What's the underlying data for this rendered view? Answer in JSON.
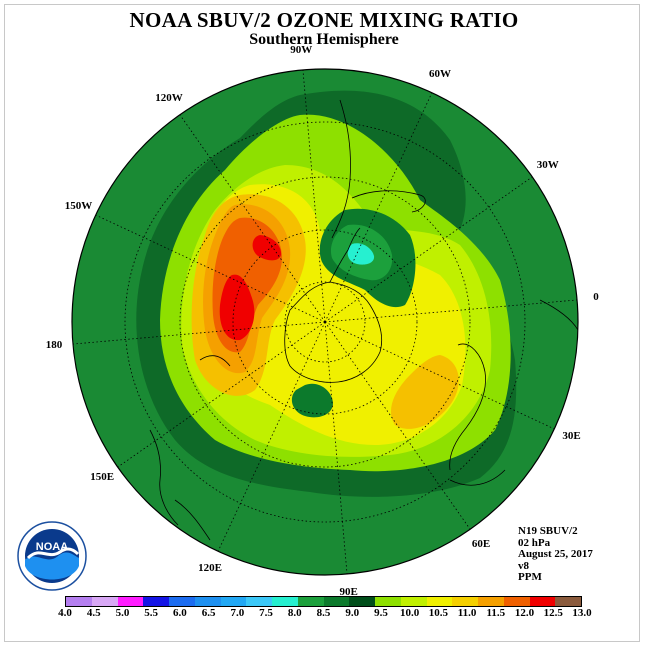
{
  "title": "NOAA SBUV/2 OZONE MIXING RATIO",
  "subtitle": "Southern Hemisphere",
  "longitudes": [
    {
      "label": "90W",
      "angle": -90
    },
    {
      "label": "60W",
      "angle": -60
    },
    {
      "label": "30W",
      "angle": -30
    },
    {
      "label": "0",
      "angle": 0
    },
    {
      "label": "30E",
      "angle": 30
    },
    {
      "label": "60E",
      "angle": 60
    },
    {
      "label": "90E",
      "angle": 90
    },
    {
      "label": "120E",
      "angle": 120
    },
    {
      "label": "150E",
      "angle": 150
    },
    {
      "label": "180",
      "angle": 180
    },
    {
      "label": "150W",
      "angle": 210
    },
    {
      "label": "120W",
      "angle": 240
    }
  ],
  "info": {
    "satellite": "N19 SBUV/2",
    "level": "02 hPa",
    "date": "August 25, 2017",
    "version": "v8",
    "units": "PPM"
  },
  "logo": {
    "text": "NOAA"
  },
  "colorbar": {
    "ticks": [
      "4.0",
      "4.5",
      "5.0",
      "5.5",
      "6.0",
      "6.5",
      "7.0",
      "7.5",
      "8.0",
      "8.5",
      "9.0",
      "9.5",
      "10.0",
      "10.5",
      "11.0",
      "11.5",
      "12.0",
      "12.5",
      "13.0"
    ],
    "colors": [
      "#b57ff0",
      "#d8a8f5",
      "#ff1cff",
      "#1414e6",
      "#1c6cf0",
      "#1e90f0",
      "#22a8f4",
      "#3cc8f8",
      "#26f0d0",
      "#1ca03c",
      "#0c7a2c",
      "#004e1a",
      "#8ee000",
      "#c0f000",
      "#f0f000",
      "#f5d000",
      "#f5a000",
      "#f06000",
      "#f00000",
      "#8a5a3c"
    ]
  }
}
